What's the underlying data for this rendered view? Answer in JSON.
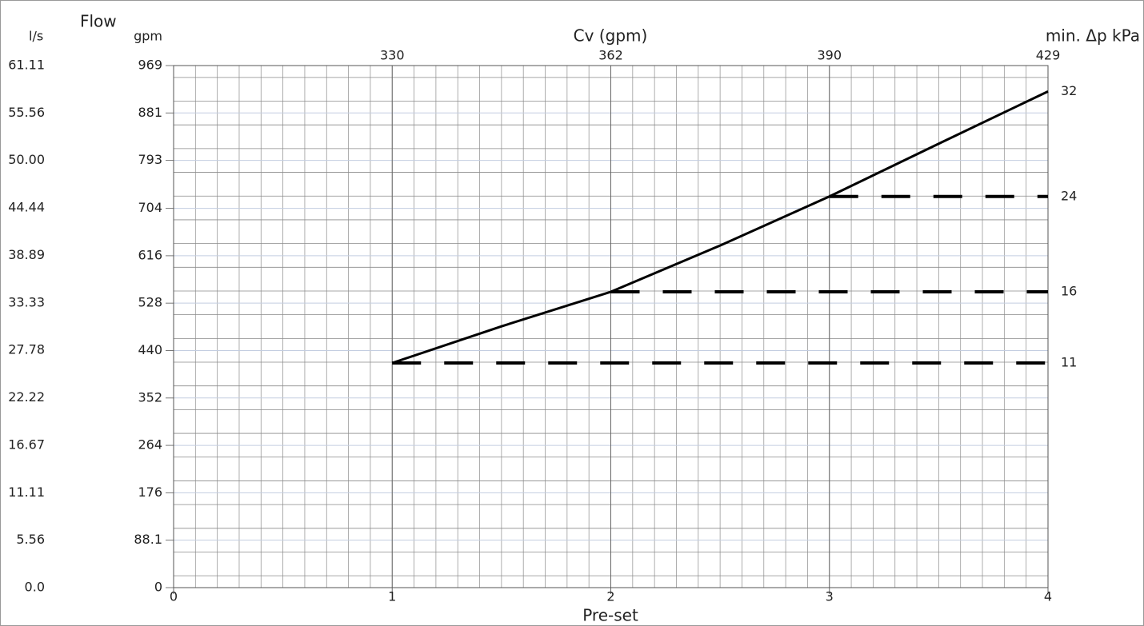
{
  "chart_data": {
    "type": "line",
    "title": "Flow",
    "ylabel_ls": "l/s",
    "ylabel": "gpm",
    "top_label": "Cv (gpm)",
    "right_label": "min. Δp kPa",
    "xlabel": "Pre-set",
    "xlim": [
      0,
      4
    ],
    "xticks": [
      0,
      1,
      2,
      3,
      4
    ],
    "ylim": [
      0,
      969
    ],
    "yticks": [
      0,
      88.1,
      176,
      264,
      352,
      440,
      528,
      616,
      704,
      793,
      881,
      969
    ],
    "ylim_ls": [
      0,
      61.11
    ],
    "yticks_ls": [
      {
        "value": 0,
        "label": "0.0"
      },
      5.56,
      11.11,
      16.67,
      22.22,
      27.78,
      33.33,
      38.89,
      44.44,
      {
        "value": 50,
        "label": "50.00"
      },
      55.56,
      61.11
    ],
    "cv_labels": [
      330,
      362,
      390,
      429
    ],
    "cv_at": [
      1,
      2,
      3,
      4
    ],
    "grid": true,
    "series": [
      {
        "color": "#000000",
        "x": [
          1,
          1.5,
          2,
          2.5,
          3,
          3.5,
          4
        ],
        "values": [
          417,
          485,
          549,
          635,
          726,
          824,
          921
        ]
      }
    ],
    "min_dp": {
      "values": [
        32,
        24,
        16,
        11
      ],
      "flow": [
        921,
        726,
        549,
        417
      ],
      "from_preset": [
        4,
        3,
        2,
        1
      ],
      "color": "#000000"
    }
  }
}
